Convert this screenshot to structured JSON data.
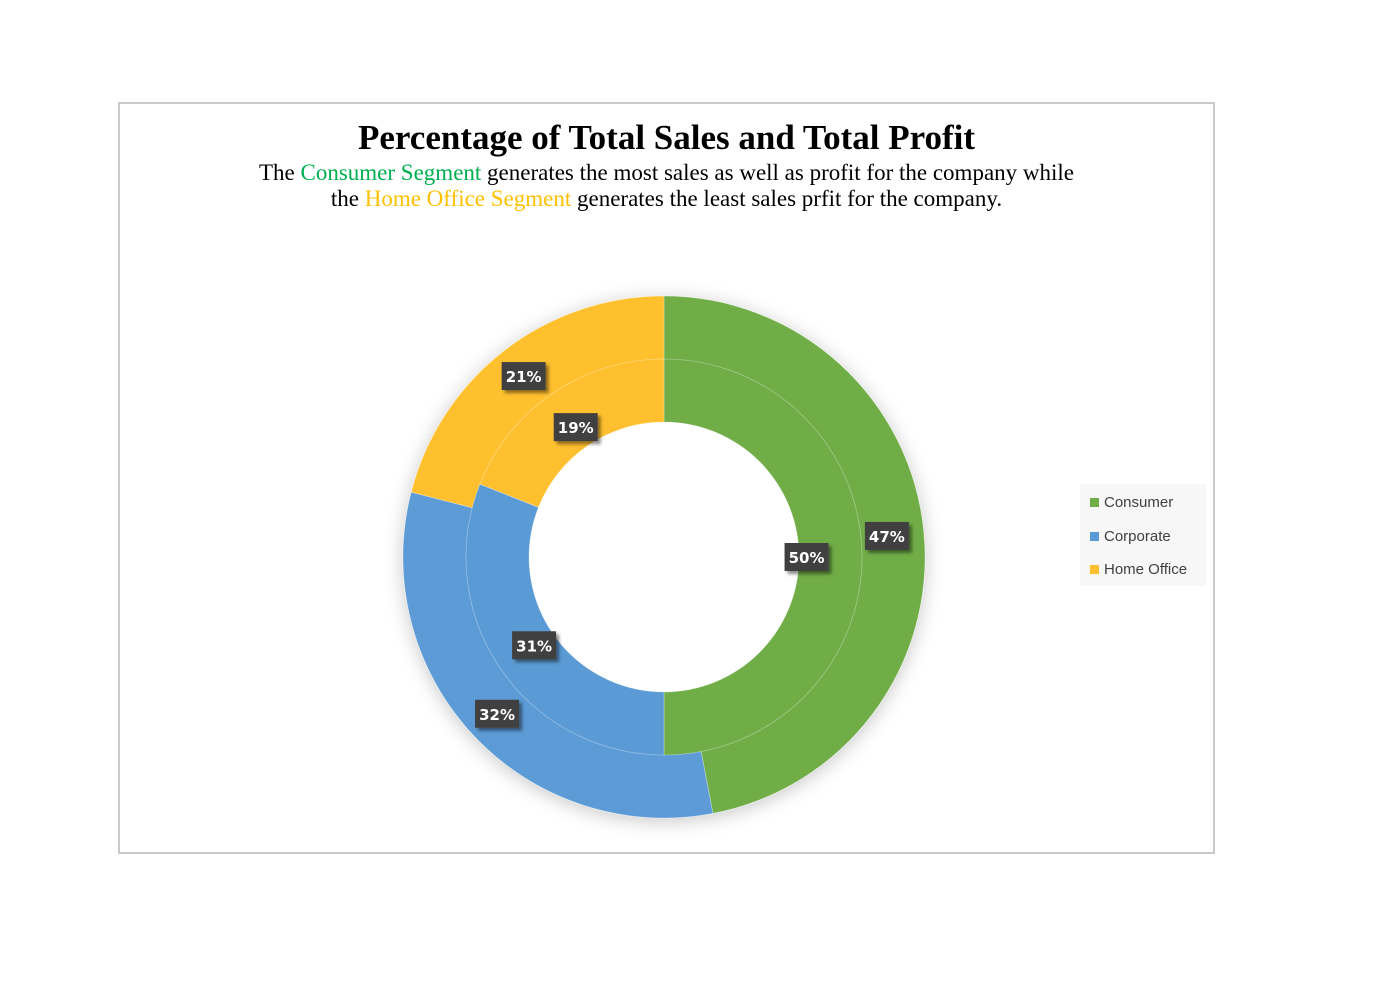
{
  "chart": {
    "title": "Percentage of Total Sales and Total Profit",
    "subtitle": {
      "line1_pre": "The ",
      "line1_highlight": "Consumer Segment",
      "line1_post": " generates the most sales as well as profit  for the company while",
      "line2_pre": "the ",
      "line2_highlight": "Home Office Segment",
      "line2_post": " generates the least sales prfit for the company."
    }
  },
  "colors": {
    "consumer": "#70ad47",
    "corporate": "#5b9bd5",
    "home_office": "#ffc02f",
    "label_bg": "#404040",
    "highlight_consumer": "#00b050",
    "highlight_home_office": "#ffc000"
  },
  "chart_data": {
    "type": "pie",
    "variant": "doughnut",
    "categories": [
      "Consumer",
      "Corporate",
      "Home Office"
    ],
    "series": [
      {
        "ring": "outer",
        "values": [
          47,
          32,
          21
        ],
        "labels": [
          "47%",
          "32%",
          "21%"
        ]
      },
      {
        "ring": "inner",
        "values": [
          50,
          31,
          19
        ],
        "labels": [
          "50%",
          "31%",
          "19%"
        ]
      }
    ],
    "title": "Percentage of Total Sales and Total Profit",
    "legend": {
      "position": "right",
      "entries": [
        "Consumer",
        "Corporate",
        "Home Office"
      ]
    },
    "start_angle": "12 o'clock",
    "direction": "clockwise"
  }
}
